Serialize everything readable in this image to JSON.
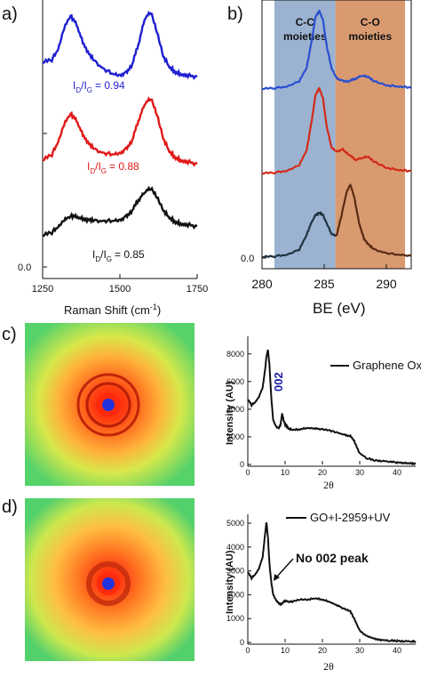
{
  "chart_data": [
    {
      "panel": "a)",
      "type": "line",
      "xlabel": "Raman Shift (cm-1)",
      "xlabel_main": "Raman Shift (cm",
      "xlabel_sup": "-1",
      "xlabel_close": ")",
      "xlim": [
        1250,
        1750
      ],
      "xticks": [
        "1250",
        "1500",
        "1750"
      ],
      "ytick_zero": "0.0",
      "series": [
        {
          "color": "#1f1fd0",
          "ratio_label": "ID/IG = 0.94",
          "ratio_value": "= 0.94",
          "x": [
            1250,
            1280,
            1300,
            1320,
            1340,
            1360,
            1380,
            1400,
            1420,
            1450,
            1480,
            1500,
            1520,
            1540,
            1560,
            1580,
            1600,
            1620,
            1640,
            1660,
            1680,
            1700,
            1720,
            1750
          ],
          "y": [
            0.3,
            0.34,
            0.48,
            0.78,
            0.95,
            0.82,
            0.58,
            0.42,
            0.31,
            0.2,
            0.14,
            0.13,
            0.16,
            0.28,
            0.55,
            0.9,
            1.0,
            0.72,
            0.4,
            0.24,
            0.17,
            0.14,
            0.12,
            0.11
          ]
        },
        {
          "color": "#e01818",
          "ratio_label": "ID/IG = 0.88",
          "ratio_value": "= 0.88",
          "x": [
            1250,
            1280,
            1300,
            1320,
            1340,
            1360,
            1380,
            1400,
            1420,
            1450,
            1480,
            1500,
            1520,
            1540,
            1560,
            1580,
            1600,
            1620,
            1640,
            1660,
            1680,
            1700,
            1720,
            1750
          ],
          "y": [
            0.18,
            0.26,
            0.42,
            0.66,
            0.8,
            0.7,
            0.52,
            0.4,
            0.32,
            0.27,
            0.26,
            0.28,
            0.33,
            0.45,
            0.7,
            0.92,
            1.0,
            0.78,
            0.48,
            0.3,
            0.22,
            0.18,
            0.16,
            0.14
          ]
        },
        {
          "color": "#111111",
          "ratio_label": "ID/IG = 0.85",
          "ratio_value": "= 0.85",
          "x": [
            1250,
            1280,
            1300,
            1320,
            1340,
            1360,
            1380,
            1400,
            1420,
            1450,
            1480,
            1500,
            1520,
            1540,
            1560,
            1580,
            1600,
            1620,
            1640,
            1660,
            1680,
            1700,
            1720,
            1750
          ],
          "y": [
            0.05,
            0.12,
            0.22,
            0.36,
            0.44,
            0.42,
            0.38,
            0.36,
            0.34,
            0.33,
            0.34,
            0.36,
            0.42,
            0.55,
            0.74,
            0.9,
            0.98,
            0.8,
            0.56,
            0.4,
            0.32,
            0.28,
            0.26,
            0.24
          ]
        }
      ]
    },
    {
      "panel": "b)",
      "type": "line",
      "xlabel": "BE (eV)",
      "xlim": [
        280,
        292
      ],
      "xticks": [
        "280",
        "285",
        "290"
      ],
      "ytick_zero": "0.0",
      "regions": [
        {
          "name": "C-C moieties",
          "line1": "C-C",
          "line2": "moieties",
          "from": 281.0,
          "to": 285.9,
          "color": "#9bb3d1"
        },
        {
          "name": "C-O moieties",
          "line1": "C-O",
          "line2": "moieties",
          "from": 285.9,
          "to": 291.5,
          "color": "#d99a70"
        }
      ],
      "series": [
        {
          "color": "#2a4fd0",
          "x": [
            280,
            281,
            282,
            283,
            283.6,
            284,
            284.3,
            284.6,
            284.9,
            285.2,
            285.6,
            286,
            286.5,
            287,
            287.5,
            288,
            288.5,
            289,
            290,
            291,
            292
          ],
          "y": [
            0.0,
            0.01,
            0.03,
            0.1,
            0.28,
            0.62,
            0.92,
            1.0,
            0.88,
            0.55,
            0.26,
            0.14,
            0.1,
            0.1,
            0.13,
            0.17,
            0.16,
            0.1,
            0.05,
            0.03,
            0.02
          ]
        },
        {
          "color": "#d42a1a",
          "x": [
            280,
            281,
            282,
            283,
            283.6,
            284,
            284.3,
            284.6,
            284.9,
            285.2,
            285.6,
            286,
            286.5,
            287,
            287.5,
            288,
            288.5,
            289,
            290,
            291,
            292
          ],
          "y": [
            0.0,
            0.01,
            0.03,
            0.1,
            0.28,
            0.62,
            0.92,
            1.0,
            0.88,
            0.55,
            0.3,
            0.26,
            0.28,
            0.22,
            0.16,
            0.18,
            0.2,
            0.14,
            0.07,
            0.04,
            0.03
          ]
        },
        {
          "color": "#1f3340",
          "color2": "#5a2a14",
          "x": [
            280,
            281,
            282,
            283,
            283.6,
            284,
            284.3,
            284.6,
            284.9,
            285.2,
            285.6,
            286,
            286.4,
            286.8,
            287.1,
            287.4,
            287.8,
            288.2,
            288.6,
            289,
            290,
            291,
            292
          ],
          "y": [
            0.0,
            0.01,
            0.03,
            0.1,
            0.3,
            0.46,
            0.55,
            0.58,
            0.55,
            0.44,
            0.3,
            0.28,
            0.55,
            0.85,
            0.95,
            0.8,
            0.45,
            0.24,
            0.16,
            0.1,
            0.05,
            0.03,
            0.02
          ]
        }
      ]
    },
    {
      "panel": "c)",
      "type": "line",
      "xlabel": "2θ",
      "ylabel": "Intensity (AU)",
      "xlim": [
        0,
        45
      ],
      "ylim": [
        0,
        8500
      ],
      "xticks": [
        "0",
        "10",
        "20",
        "30",
        "40"
      ],
      "yticks": [
        "0",
        "2000",
        "4000",
        "6000",
        "8000"
      ],
      "legend": "Graphene Oxide",
      "annotation": "002",
      "series": [
        {
          "name": "Graphene Oxide",
          "x": [
            0,
            1,
            2,
            3,
            4,
            4.6,
            5,
            5.4,
            5.8,
            6.3,
            6.8,
            7.5,
            8.2,
            8.8,
            9.2,
            9.6,
            10,
            10.5,
            11,
            12,
            14,
            16,
            18,
            20,
            22,
            24,
            26,
            27.5,
            28.5,
            30,
            32,
            34,
            36,
            38,
            40,
            42,
            44,
            45
          ],
          "y": [
            4700,
            4300,
            4500,
            4900,
            5600,
            6800,
            7800,
            8300,
            7200,
            4800,
            3200,
            2800,
            2600,
            2900,
            3700,
            3200,
            2900,
            2700,
            2600,
            2500,
            2550,
            2650,
            2600,
            2550,
            2450,
            2300,
            2150,
            2050,
            1700,
            800,
            450,
            300,
            250,
            200,
            150,
            100,
            80,
            70
          ]
        }
      ]
    },
    {
      "panel": "d)",
      "type": "line",
      "xlabel": "2θ",
      "ylabel": "Intensity (AU)",
      "xlim": [
        0,
        45
      ],
      "ylim": [
        0,
        5300
      ],
      "xticks": [
        "0",
        "10",
        "20",
        "30",
        "40"
      ],
      "yticks": [
        "0",
        "1000",
        "2000",
        "3000",
        "4000",
        "5000"
      ],
      "legend": "GO+I-2959+UV",
      "annotation": "No 002 peak",
      "series": [
        {
          "name": "GO+I-2959+UV",
          "x": [
            0,
            1,
            2,
            3,
            4,
            4.6,
            5,
            5.4,
            5.8,
            6.3,
            6.8,
            7.5,
            8.2,
            9,
            10,
            11,
            12,
            14,
            16,
            18,
            20,
            22,
            24,
            26,
            27.5,
            28.5,
            30,
            32,
            34,
            36,
            38,
            40,
            42,
            44,
            45
          ],
          "y": [
            2950,
            2700,
            2850,
            3100,
            3600,
            4500,
            5050,
            4400,
            3300,
            2500,
            2000,
            1800,
            1650,
            1600,
            1750,
            1700,
            1720,
            1800,
            1800,
            1850,
            1800,
            1700,
            1550,
            1400,
            1300,
            1000,
            500,
            250,
            150,
            100,
            80,
            60,
            50,
            40,
            40
          ]
        }
      ]
    }
  ],
  "images": {
    "c": {
      "panel": "c)",
      "rings": "two concentric rings"
    },
    "d": {
      "panel": "d)",
      "rings": "single diffuse ring"
    }
  }
}
